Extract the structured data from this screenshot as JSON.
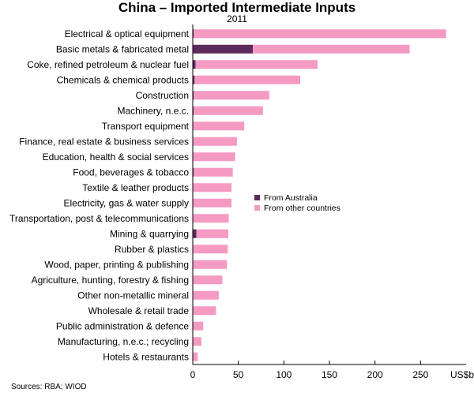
{
  "chart_data": {
    "type": "bar",
    "orientation": "horizontal",
    "stacked": true,
    "title": "China – Imported Intermediate Inputs",
    "subtitle": "2011",
    "xlabel": "US$b",
    "source": "Sources: RBA; WIOD",
    "xlim": [
      0,
      300
    ],
    "xticks": [
      0,
      50,
      100,
      150,
      200,
      250
    ],
    "legend_position": "right-middle",
    "categories": [
      "Electrical & optical equipment",
      "Basic metals & fabricated metal",
      "Coke, refined petroleum & nuclear fuel",
      "Chemicals & chemical products",
      "Construction",
      "Machinery, n.e.c.",
      "Transport equipment",
      "Finance, real estate & business services",
      "Education, health & social services",
      "Food, beverages & tobacco",
      "Textile & leather products",
      "Electricity, gas & water supply",
      "Transportation, post & telecommunications",
      "Mining & quarrying",
      "Rubber & plastics",
      "Wood, paper, printing & publishing",
      "Agriculture, hunting, forestry & fishing",
      "Other non-metallic mineral",
      "Wholesale & retail trade",
      "Public administration & defence",
      "Manufacturing, n.e.c.; recycling",
      "Hotels & restaurants"
    ],
    "series": [
      {
        "name": "From Australia",
        "color": "#5c2a5c",
        "values": [
          1,
          66,
          3,
          2,
          1,
          1,
          0.5,
          0.5,
          0.5,
          1,
          0.5,
          0.5,
          0.5,
          4,
          0.5,
          0.5,
          0.5,
          0.5,
          0.5,
          0.5,
          0.5,
          0.5
        ]
      },
      {
        "name": "From other countries",
        "color": "#f59ac3",
        "values": [
          277,
          172,
          134,
          116,
          83,
          76,
          56,
          48,
          46,
          43,
          42,
          42,
          39,
          35,
          38,
          37,
          32,
          28,
          25,
          11,
          9,
          5
        ]
      }
    ]
  }
}
